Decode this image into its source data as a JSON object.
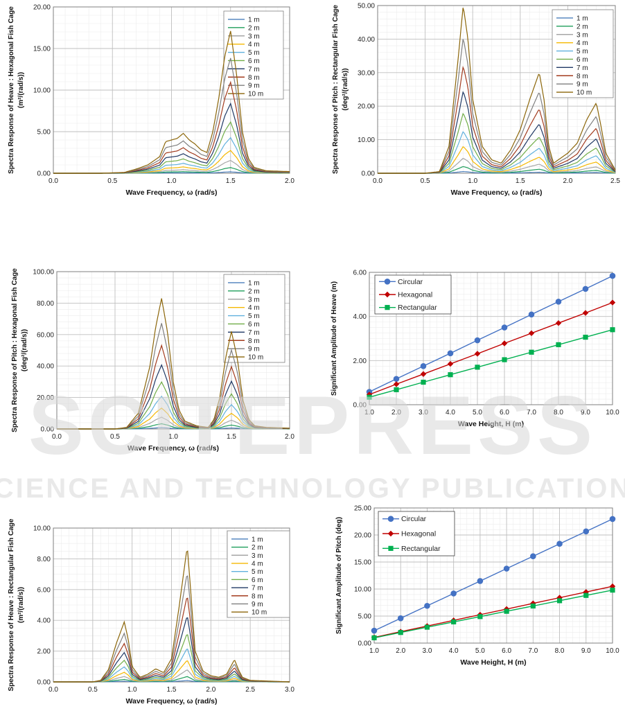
{
  "watermark": {
    "big": "SCITEPRESS",
    "small": "SCIENCE AND TECHNOLOGY PUBLICATIONS"
  },
  "chart_data": [
    {
      "id": "p1",
      "type": "line",
      "ylabel_lines": [
        "Spectra Response of Heave : Hexagonal Fish Cage",
        "(m²/(rad/s))"
      ],
      "xlabel": "Wave Frequency, ω (rad/s)",
      "xlim": [
        0,
        2
      ],
      "xticks": [
        0,
        0.5,
        1.0,
        1.5,
        2.0
      ],
      "xtick_labels": [
        "0.0",
        "0.5",
        "1.0",
        "1.5",
        "2.0"
      ],
      "x_minor_step": 0.1,
      "ylim": [
        0,
        20
      ],
      "yticks": [
        0,
        5,
        10,
        15,
        20
      ],
      "ytick_labels": [
        "0.00",
        "5.00",
        "10.00",
        "15.00",
        "20.00"
      ],
      "y_minor_step": 1,
      "legend_position": "top-right",
      "wave_heights": [
        "1 m",
        "2 m",
        "3 m",
        "4 m",
        "5 m",
        "6 m",
        "7 m",
        "8 m",
        "9 m",
        "10 m"
      ],
      "series_colors": [
        "#4a7ebb",
        "#1e9e5a",
        "#a6a6a6",
        "#f5b800",
        "#5fb0dd",
        "#70ad47",
        "#1f3864",
        "#a33b1e",
        "#7f7f7f",
        "#8b6508"
      ],
      "max_envelope": [
        [
          0,
          0
        ],
        [
          0.4,
          0
        ],
        [
          0.6,
          0.1
        ],
        [
          0.7,
          0.5
        ],
        [
          0.8,
          1.0
        ],
        [
          0.9,
          2.0
        ],
        [
          0.95,
          3.8
        ],
        [
          1.0,
          4.0
        ],
        [
          1.05,
          4.2
        ],
        [
          1.1,
          4.8
        ],
        [
          1.15,
          4.0
        ],
        [
          1.2,
          3.5
        ],
        [
          1.25,
          2.8
        ],
        [
          1.3,
          2.5
        ],
        [
          1.35,
          5.0
        ],
        [
          1.4,
          9.0
        ],
        [
          1.45,
          14.0
        ],
        [
          1.5,
          17.1
        ],
        [
          1.55,
          12.0
        ],
        [
          1.6,
          5.0
        ],
        [
          1.65,
          1.8
        ],
        [
          1.7,
          0.7
        ],
        [
          1.8,
          0.3
        ],
        [
          2.0,
          0.2
        ]
      ]
    },
    {
      "id": "p2",
      "type": "line",
      "ylabel_lines": [
        "Spectra Response of Pitch : Rectangular Fish Cage",
        "(deg²/(rad/s))"
      ],
      "xlabel": "Wave Frequency, ω (rad/s)",
      "xlim": [
        0,
        2.5
      ],
      "xticks": [
        0,
        0.5,
        1.0,
        1.5,
        2.0,
        2.5
      ],
      "xtick_labels": [
        "0.0",
        "0.5",
        "1.0",
        "1.5",
        "2.0",
        "2.5"
      ],
      "x_minor_step": 0.1,
      "ylim": [
        0,
        50
      ],
      "yticks": [
        0,
        10,
        20,
        30,
        40,
        50
      ],
      "ytick_labels": [
        "0.00",
        "10.00",
        "20.00",
        "30.00",
        "40.00",
        "50.00"
      ],
      "y_minor_step": 2,
      "legend_position": "top-right",
      "wave_heights": [
        "1 m",
        "2 m",
        "3 m",
        "4 m",
        "5 m",
        "6 m",
        "7 m",
        "8 m",
        "9 m",
        "10 m"
      ],
      "series_colors": [
        "#4a7ebb",
        "#1e9e5a",
        "#a6a6a6",
        "#f5b800",
        "#5fb0dd",
        "#70ad47",
        "#1f3864",
        "#a33b1e",
        "#7f7f7f",
        "#8b6508"
      ],
      "max_envelope": [
        [
          0,
          0
        ],
        [
          0.5,
          0
        ],
        [
          0.65,
          0.5
        ],
        [
          0.75,
          8
        ],
        [
          0.85,
          35
        ],
        [
          0.9,
          50
        ],
        [
          0.95,
          40
        ],
        [
          1.0,
          22
        ],
        [
          1.1,
          8
        ],
        [
          1.2,
          4
        ],
        [
          1.3,
          3
        ],
        [
          1.4,
          7
        ],
        [
          1.5,
          13
        ],
        [
          1.6,
          22
        ],
        [
          1.7,
          30
        ],
        [
          1.75,
          22
        ],
        [
          1.8,
          8
        ],
        [
          1.85,
          3
        ],
        [
          1.9,
          4
        ],
        [
          2.0,
          6
        ],
        [
          2.1,
          9
        ],
        [
          2.2,
          16
        ],
        [
          2.3,
          21
        ],
        [
          2.35,
          14
        ],
        [
          2.4,
          6
        ],
        [
          2.5,
          1
        ]
      ]
    },
    {
      "id": "p3",
      "type": "line",
      "ylabel_lines": [
        "Spectra Response of Pitch : Hexagonal Fish Cage",
        "(deg²/(rad/s))"
      ],
      "xlabel": "Wave Frequency, ω (rad/s)",
      "xlim": [
        0,
        2
      ],
      "xticks": [
        0,
        0.5,
        1.0,
        1.5,
        2.0
      ],
      "xtick_labels": [
        "0.0",
        "0.5",
        "1.0",
        "1.5",
        "2.0"
      ],
      "x_minor_step": 0.1,
      "ylim": [
        0,
        100
      ],
      "yticks": [
        0,
        20,
        40,
        60,
        80,
        100
      ],
      "ytick_labels": [
        "0.00",
        "20.00",
        "40.00",
        "60.00",
        "80.00",
        "100.00"
      ],
      "y_minor_step": 4,
      "legend_position": "top-right",
      "wave_heights": [
        "1 m",
        "2 m",
        "3 m",
        "4 m",
        "5 m",
        "6 m",
        "7 m",
        "8 m",
        "9 m",
        "10 m"
      ],
      "series_colors": [
        "#4a7ebb",
        "#1e9e5a",
        "#a6a6a6",
        "#f5b800",
        "#5fb0dd",
        "#70ad47",
        "#1f3864",
        "#a33b1e",
        "#7f7f7f",
        "#8b6508"
      ],
      "max_envelope": [
        [
          0,
          0
        ],
        [
          0.5,
          0
        ],
        [
          0.6,
          1
        ],
        [
          0.7,
          10
        ],
        [
          0.8,
          40
        ],
        [
          0.85,
          65
        ],
        [
          0.9,
          83
        ],
        [
          0.95,
          62
        ],
        [
          1.0,
          30
        ],
        [
          1.05,
          12
        ],
        [
          1.1,
          5
        ],
        [
          1.2,
          2
        ],
        [
          1.3,
          1
        ],
        [
          1.35,
          6
        ],
        [
          1.4,
          20
        ],
        [
          1.45,
          45
        ],
        [
          1.5,
          62
        ],
        [
          1.55,
          45
        ],
        [
          1.6,
          18
        ],
        [
          1.65,
          6
        ],
        [
          1.7,
          2
        ],
        [
          1.8,
          1
        ],
        [
          2.0,
          0.5
        ]
      ]
    },
    {
      "id": "p4",
      "type": "line",
      "with_markers": true,
      "ylabel_lines": [
        "Significant Amplitude of Heave (m)"
      ],
      "xlabel": "Wave Height, H (m)",
      "xlim": [
        1,
        10
      ],
      "xticks": [
        1,
        2,
        3,
        4,
        5,
        6,
        7,
        8,
        9,
        10
      ],
      "xtick_labels": [
        "1.0",
        "2.0",
        "3.0",
        "4.0",
        "5.0",
        "6.0",
        "7.0",
        "8.0",
        "9.0",
        "10.0"
      ],
      "x_minor_step": 0.25,
      "ylim": [
        0,
        6
      ],
      "yticks": [
        0,
        2,
        4,
        6
      ],
      "ytick_labels": [
        "0.00",
        "2.00",
        "4.00",
        "6.00"
      ],
      "y_minor_step": 0.25,
      "legend_position": "top-left",
      "x": [
        1,
        2,
        3,
        4,
        5,
        6,
        7,
        8,
        9,
        10
      ],
      "series": [
        {
          "name": "Circular",
          "color": "#4472c4",
          "marker": "circle",
          "values": [
            0.58,
            1.17,
            1.75,
            2.33,
            2.92,
            3.5,
            4.09,
            4.67,
            5.25,
            5.84
          ]
        },
        {
          "name": "Hexagonal",
          "color": "#c00000",
          "marker": "diamond",
          "values": [
            0.46,
            0.93,
            1.39,
            1.85,
            2.31,
            2.78,
            3.24,
            3.7,
            4.16,
            4.63
          ]
        },
        {
          "name": "Rectangular",
          "color": "#00b050",
          "marker": "square",
          "values": [
            0.34,
            0.68,
            1.02,
            1.36,
            1.7,
            2.04,
            2.38,
            2.72,
            3.06,
            3.4
          ]
        }
      ]
    },
    {
      "id": "p5",
      "type": "line",
      "ylabel_lines": [
        "Spectra Response of Heave : Rectangular Fish Cage",
        "(m²/(rad/s))"
      ],
      "xlabel": "Wave Frequency, ω (rad/s)",
      "xlim": [
        0,
        3
      ],
      "xticks": [
        0,
        0.5,
        1.0,
        1.5,
        2.0,
        2.5,
        3.0
      ],
      "xtick_labels": [
        "0.0",
        "0.5",
        "1.0",
        "1.5",
        "2.0",
        "2.5",
        "3.0"
      ],
      "x_minor_step": 0.1,
      "ylim": [
        0,
        10
      ],
      "yticks": [
        0,
        2,
        4,
        6,
        8,
        10
      ],
      "ytick_labels": [
        "0.00",
        "2.00",
        "4.00",
        "6.00",
        "8.00",
        "10.00"
      ],
      "y_minor_step": 0.5,
      "legend_position": "top-right",
      "wave_heights": [
        "1 m",
        "2 m",
        "3 m",
        "4 m",
        "5 m",
        "6 m",
        "7 m",
        "8 m",
        "9 m",
        "10 m"
      ],
      "series_colors": [
        "#4a7ebb",
        "#1e9e5a",
        "#a6a6a6",
        "#f5b800",
        "#5fb0dd",
        "#70ad47",
        "#1f3864",
        "#a33b1e",
        "#7f7f7f",
        "#8b6508"
      ],
      "max_envelope": [
        [
          0,
          0
        ],
        [
          0.5,
          0
        ],
        [
          0.6,
          0.1
        ],
        [
          0.7,
          0.8
        ],
        [
          0.8,
          2.5
        ],
        [
          0.9,
          3.9
        ],
        [
          0.95,
          2.8
        ],
        [
          1.0,
          1.0
        ],
        [
          1.1,
          0.3
        ],
        [
          1.2,
          0.5
        ],
        [
          1.3,
          0.85
        ],
        [
          1.4,
          0.6
        ],
        [
          1.5,
          1.5
        ],
        [
          1.6,
          5.0
        ],
        [
          1.7,
          8.8
        ],
        [
          1.75,
          5.5
        ],
        [
          1.8,
          2.0
        ],
        [
          1.9,
          0.7
        ],
        [
          2.0,
          0.4
        ],
        [
          2.1,
          0.3
        ],
        [
          2.2,
          0.5
        ],
        [
          2.3,
          1.45
        ],
        [
          2.35,
          0.8
        ],
        [
          2.4,
          0.3
        ],
        [
          2.5,
          0.1
        ],
        [
          3.0,
          0
        ]
      ]
    },
    {
      "id": "p6",
      "type": "line",
      "with_markers": true,
      "ylabel_lines": [
        "Significant Amplitude of Pitch (deg)"
      ],
      "xlabel": "Wave Height, H (m)",
      "xlim": [
        1,
        10
      ],
      "xticks": [
        1,
        2,
        3,
        4,
        5,
        6,
        7,
        8,
        9,
        10
      ],
      "xtick_labels": [
        "1.0",
        "2.0",
        "3.0",
        "4.0",
        "5.0",
        "6.0",
        "7.0",
        "8.0",
        "9.0",
        "10.0"
      ],
      "x_minor_step": 0.25,
      "ylim": [
        0,
        25
      ],
      "yticks": [
        0,
        5,
        10,
        15,
        20,
        25
      ],
      "ytick_labels": [
        "0.00",
        "5.00",
        "10.00",
        "15.00",
        "20.00",
        "25.00"
      ],
      "y_minor_step": 1,
      "legend_position": "top-left",
      "x": [
        1,
        2,
        3,
        4,
        5,
        6,
        7,
        8,
        9,
        10
      ],
      "series": [
        {
          "name": "Circular",
          "color": "#4472c4",
          "marker": "circle",
          "values": [
            2.3,
            4.59,
            6.89,
            9.18,
            11.48,
            13.78,
            16.07,
            18.37,
            20.66,
            22.96
          ]
        },
        {
          "name": "Hexagonal",
          "color": "#c00000",
          "marker": "diamond",
          "values": [
            1.05,
            2.1,
            3.15,
            4.2,
            5.25,
            6.3,
            7.35,
            8.4,
            9.45,
            10.5
          ]
        },
        {
          "name": "Rectangular",
          "color": "#00b050",
          "marker": "square",
          "values": [
            0.98,
            1.96,
            2.94,
            3.92,
            4.9,
            5.88,
            6.86,
            7.84,
            8.82,
            9.8
          ]
        }
      ]
    }
  ]
}
